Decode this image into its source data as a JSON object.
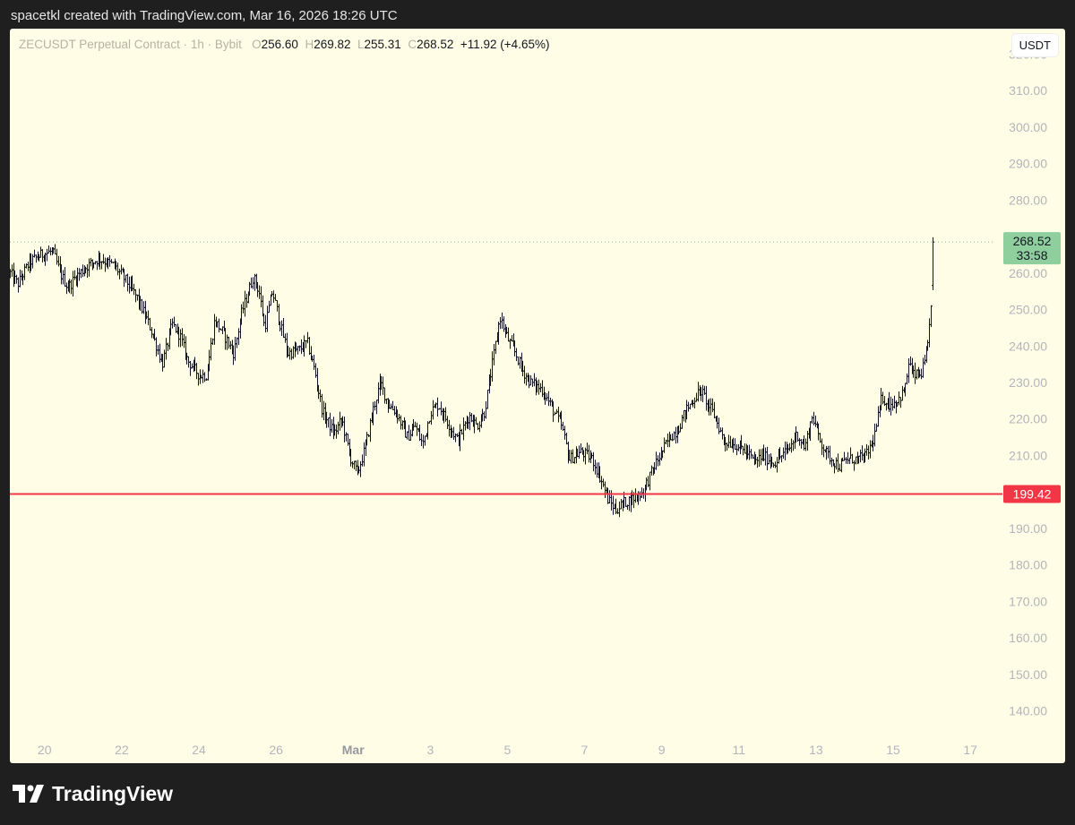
{
  "header": {
    "text": "spacetkl created with TradingView.com, Mar 16, 2026 18:26 UTC"
  },
  "legend": {
    "symbol": "ZECUSDT Perpetual Contract · 1h · Bybit",
    "o_label": "O",
    "o": "256.60",
    "h_label": "H",
    "h": "269.82",
    "l_label": "L",
    "l": "255.31",
    "c_label": "C",
    "c": "268.52",
    "change": "+11.92 (+4.65%)"
  },
  "unit_button": "USDT",
  "price_tag": {
    "price": "268.52",
    "countdown": "33:58",
    "color": "#8fcf9d"
  },
  "level_tag": {
    "price": "199.42",
    "color": "#f23645"
  },
  "footer": {
    "brand": "TradingView"
  },
  "colors": {
    "background": "#fffde5",
    "bars": "#131722",
    "axis_text": "#b2b5be",
    "month_label": "#9598a1"
  },
  "chart_data": {
    "type": "ohlc",
    "title": "ZECUSDT Perpetual Contract · 1h · Bybit",
    "ylim": [
      133,
      327
    ],
    "yticks": [
      "320.00",
      "310.00",
      "300.00",
      "290.00",
      "280.00",
      "270.00",
      "260.00",
      "250.00",
      "240.00",
      "230.00",
      "220.00",
      "210.00",
      "200.00",
      "190.00",
      "180.00",
      "170.00",
      "160.00",
      "150.00",
      "140.00"
    ],
    "x_ticks": [
      "20",
      "22",
      "24",
      "26",
      "Mar",
      "3",
      "5",
      "7",
      "9",
      "11",
      "13",
      "15",
      "17"
    ],
    "x_tick_positions": [
      0.4,
      2.4,
      4.4,
      6.4,
      8.4,
      10.4,
      12.4,
      14.4,
      16.4,
      18.4,
      20.4,
      22.4,
      24.4
    ],
    "x_range": [
      -0.5,
      25.0
    ],
    "horizontal_line": 199.42,
    "last_price": 268.52,
    "close_path": [
      [
        -0.5,
        260
      ],
      [
        -0.3,
        257
      ],
      [
        0,
        263
      ],
      [
        0.3,
        265
      ],
      [
        0.6,
        266
      ],
      [
        0.8,
        260
      ],
      [
        1.0,
        256
      ],
      [
        1.2,
        259
      ],
      [
        1.5,
        262
      ],
      [
        1.8,
        264
      ],
      [
        2.2,
        262
      ],
      [
        2.5,
        258
      ],
      [
        2.8,
        253
      ],
      [
        3.1,
        246
      ],
      [
        3.3,
        240
      ],
      [
        3.45,
        235
      ],
      [
        3.7,
        246
      ],
      [
        3.9,
        243
      ],
      [
        4.1,
        236
      ],
      [
        4.4,
        232
      ],
      [
        4.6,
        232
      ],
      [
        4.8,
        247
      ],
      [
        5.0,
        244
      ],
      [
        5.3,
        238
      ],
      [
        5.5,
        249
      ],
      [
        5.8,
        259
      ],
      [
        5.95,
        255
      ],
      [
        6.1,
        245
      ],
      [
        6.3,
        255
      ],
      [
        6.5,
        246
      ],
      [
        6.7,
        238
      ],
      [
        7.0,
        239
      ],
      [
        7.2,
        241
      ],
      [
        7.4,
        233
      ],
      [
        7.6,
        222
      ],
      [
        7.9,
        216
      ],
      [
        8.1,
        220
      ],
      [
        8.3,
        210
      ],
      [
        8.5,
        205
      ],
      [
        8.7,
        212
      ],
      [
        8.9,
        222
      ],
      [
        9.1,
        230
      ],
      [
        9.3,
        224
      ],
      [
        9.5,
        222
      ],
      [
        9.8,
        215
      ],
      [
        10.0,
        218
      ],
      [
        10.2,
        213
      ],
      [
        10.4,
        222
      ],
      [
        10.6,
        224
      ],
      [
        10.9,
        218
      ],
      [
        11.1,
        214
      ],
      [
        11.4,
        221
      ],
      [
        11.6,
        218
      ],
      [
        11.8,
        222
      ],
      [
        12.0,
        235
      ],
      [
        12.2,
        248
      ],
      [
        12.4,
        242
      ],
      [
        12.6,
        238
      ],
      [
        12.8,
        233
      ],
      [
        13.0,
        230
      ],
      [
        13.3,
        228
      ],
      [
        13.5,
        224
      ],
      [
        13.8,
        218
      ],
      [
        14.0,
        209
      ],
      [
        14.3,
        211
      ],
      [
        14.6,
        209
      ],
      [
        14.8,
        204
      ],
      [
        15.0,
        198
      ],
      [
        15.2,
        195
      ],
      [
        15.4,
        197
      ],
      [
        15.6,
        198
      ],
      [
        15.9,
        200
      ],
      [
        16.2,
        207
      ],
      [
        16.4,
        211
      ],
      [
        16.6,
        215
      ],
      [
        16.8,
        217
      ],
      [
        17.0,
        222
      ],
      [
        17.2,
        225
      ],
      [
        17.4,
        228
      ],
      [
        17.6,
        224
      ],
      [
        17.8,
        220
      ],
      [
        18.0,
        214
      ],
      [
        18.3,
        213
      ],
      [
        18.6,
        211
      ],
      [
        18.8,
        208
      ],
      [
        19.0,
        210
      ],
      [
        19.3,
        208
      ],
      [
        19.5,
        210
      ],
      [
        19.7,
        212
      ],
      [
        19.9,
        216
      ],
      [
        20.1,
        212
      ],
      [
        20.3,
        221
      ],
      [
        20.5,
        214
      ],
      [
        20.7,
        210
      ],
      [
        21.0,
        207
      ],
      [
        21.2,
        209
      ],
      [
        21.5,
        209
      ],
      [
        21.7,
        210
      ],
      [
        21.9,
        215
      ],
      [
        22.1,
        226
      ],
      [
        22.3,
        224
      ],
      [
        22.5,
        225
      ],
      [
        22.7,
        228
      ],
      [
        22.8,
        236
      ],
      [
        22.9,
        232
      ],
      [
        23.1,
        232
      ],
      [
        23.2,
        235
      ],
      [
        23.3,
        240
      ],
      [
        23.35,
        248
      ],
      [
        23.4,
        256
      ],
      [
        23.45,
        268.52
      ]
    ]
  }
}
